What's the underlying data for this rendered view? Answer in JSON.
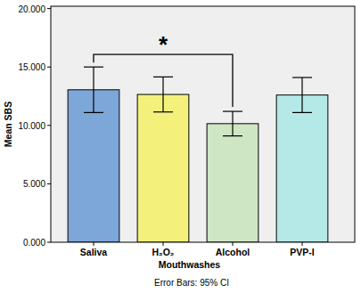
{
  "chart_data": {
    "type": "bar",
    "x_label": "Mouthwashes",
    "y_label": "Mean SBS",
    "footnote": "Error Bars: 95% CI",
    "categories": [
      "Saliva",
      "H₂O₂",
      "Alcohol",
      "PVP-I"
    ],
    "values": [
      13.05,
      12.65,
      10.15,
      12.6
    ],
    "errors": [
      1.95,
      1.5,
      1.05,
      1.5
    ],
    "colors": [
      "#7ca7d8",
      "#f4f07c",
      "#cfe6c4",
      "#b4e9e8"
    ],
    "ylim": [
      0,
      20.2
    ],
    "yticks": [
      {
        "value": 0,
        "label": "0.000"
      },
      {
        "value": 5,
        "label": "5.000"
      },
      {
        "value": 10,
        "label": "10.000"
      },
      {
        "value": 15,
        "label": "15.000"
      },
      {
        "value": 20,
        "label": "20.000"
      }
    ],
    "annotations": [
      {
        "text": "*",
        "from": "Saliva",
        "to": "Alcohol"
      }
    ]
  }
}
